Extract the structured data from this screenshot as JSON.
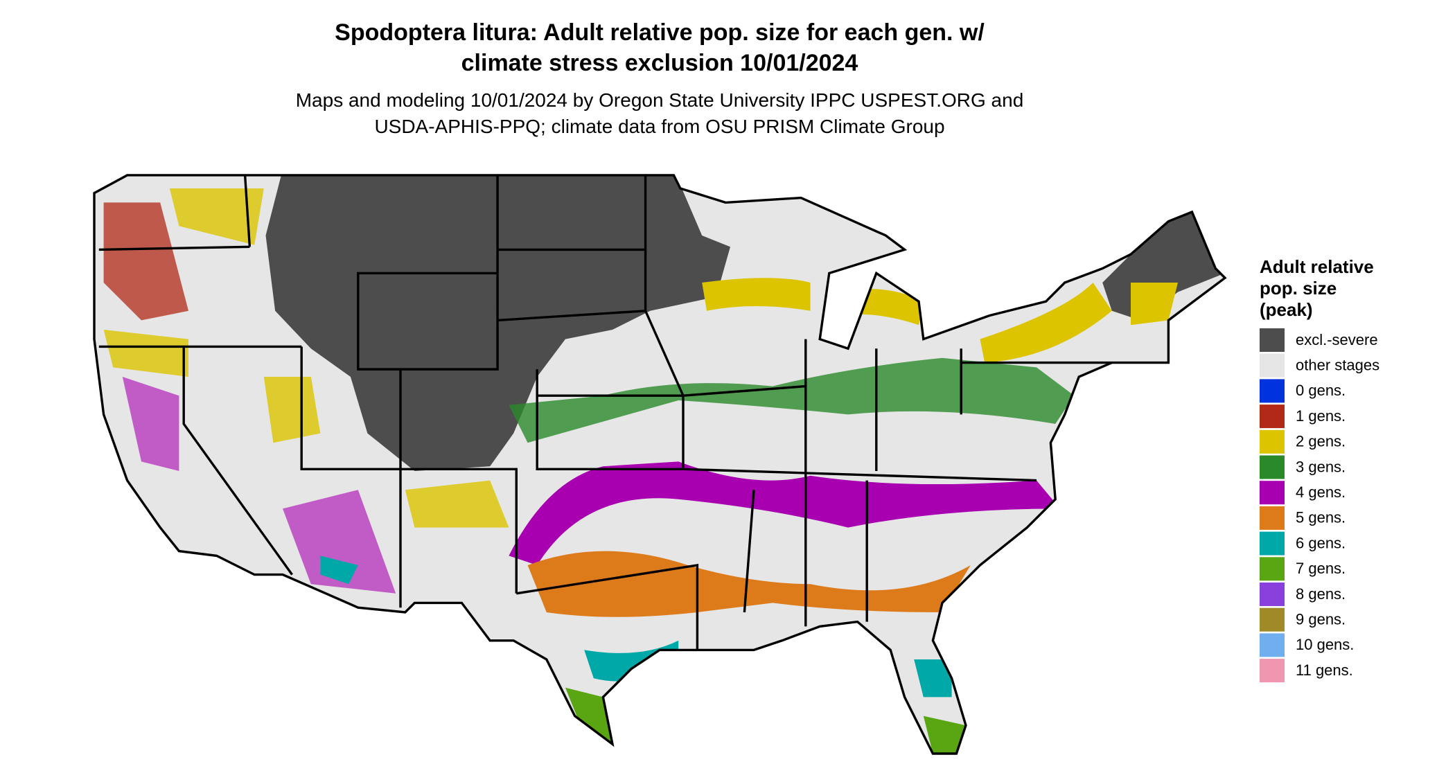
{
  "title": [
    "Spodoptera litura: Adult relative pop. size for each gen. w/",
    "climate stress exclusion 10/01/2024"
  ],
  "subtitle": [
    "Maps and modeling 10/01/2024 by Oregon State University IPPC USPEST.ORG and",
    "USDA-APHIS-PPQ; climate data from OSU PRISM Climate Group"
  ],
  "legend": {
    "title": [
      "Adult relative",
      "pop. size",
      "(peak)"
    ],
    "items": [
      {
        "label": "excl.-severe",
        "color": "#4d4d4d"
      },
      {
        "label": "other stages",
        "color": "#e6e6e6"
      },
      {
        "label": "0 gens.",
        "color": "#0033dd"
      },
      {
        "label": "1 gens.",
        "color": "#b22a17"
      },
      {
        "label": "2 gens.",
        "color": "#dcc400"
      },
      {
        "label": "3 gens.",
        "color": "#2a8a2a"
      },
      {
        "label": "4 gens.",
        "color": "#a800b0"
      },
      {
        "label": "5 gens.",
        "color": "#dd7a1a"
      },
      {
        "label": "6 gens.",
        "color": "#00a8a8"
      },
      {
        "label": "7 gens.",
        "color": "#5aa512"
      },
      {
        "label": "8 gens.",
        "color": "#8a40dd"
      },
      {
        "label": "9 gens.",
        "color": "#a08a28"
      },
      {
        "label": "10 gens.",
        "color": "#70aef0"
      },
      {
        "label": "11 gens.",
        "color": "#f096b0"
      }
    ]
  }
}
